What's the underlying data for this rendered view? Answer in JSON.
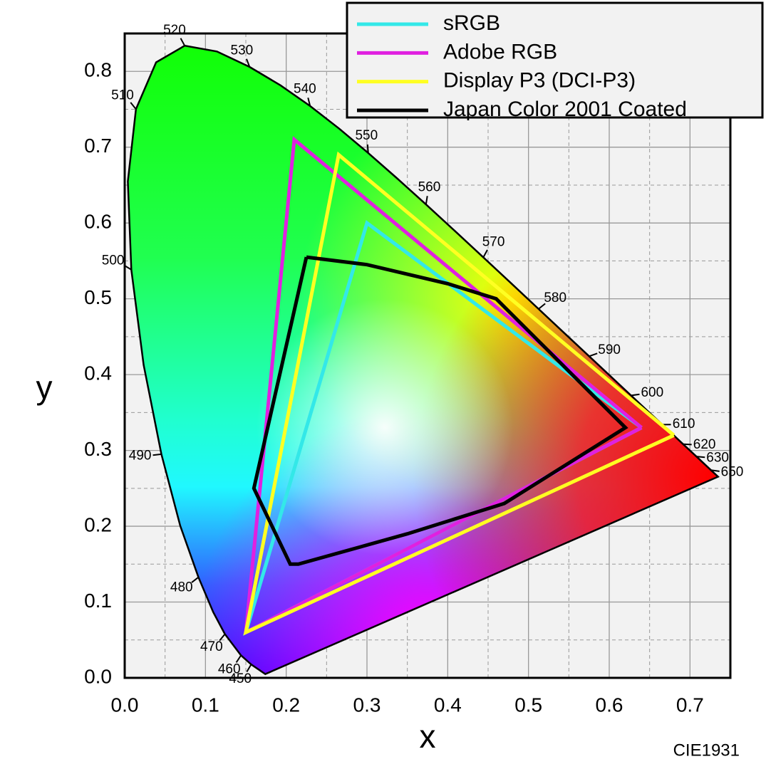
{
  "chart_data": {
    "type": "line",
    "xlabel": "x",
    "ylabel": "y",
    "footnote": "CIE1931",
    "xlim": [
      0,
      0.75
    ],
    "ylim": [
      0,
      0.85
    ],
    "xticks": [
      {
        "value": 0,
        "label": "0.0"
      },
      0.1,
      0.2,
      0.3,
      0.4,
      0.5,
      0.6,
      0.7
    ],
    "yticks": [
      {
        "value": 0,
        "label": "0.0"
      },
      0.1,
      0.2,
      0.3,
      0.4,
      0.5,
      0.6,
      0.7,
      0.8
    ],
    "xminor": [
      0.05,
      0.15,
      0.25,
      0.35,
      0.45,
      0.55,
      0.65
    ],
    "yminor": [
      0.05,
      0.15,
      0.25,
      0.35,
      0.45,
      0.55,
      0.65,
      0.75
    ],
    "grid": true,
    "minor_grid": true,
    "legend": "upper right",
    "locus": {
      "x": [
        0.1741,
        0.1566,
        0.144,
        0.1241,
        0.1096,
        0.0913,
        0.0687,
        0.0454,
        0.0235,
        0.0082,
        0.0039,
        0.0139,
        0.0389,
        0.0743,
        0.1142,
        0.1547,
        0.1929,
        0.2296,
        0.2658,
        0.3016,
        0.3373,
        0.3731,
        0.4087,
        0.4441,
        0.4788,
        0.5125,
        0.5448,
        0.5752,
        0.6029,
        0.627,
        0.6482,
        0.6658,
        0.6915,
        0.7079,
        0.726,
        0.7347
      ],
      "y": [
        0.005,
        0.0177,
        0.0297,
        0.0578,
        0.0868,
        0.1327,
        0.2007,
        0.295,
        0.4127,
        0.5384,
        0.6548,
        0.7502,
        0.812,
        0.8338,
        0.8262,
        0.8059,
        0.7816,
        0.7543,
        0.7243,
        0.6923,
        0.6589,
        0.6245,
        0.5896,
        0.5547,
        0.5202,
        0.4866,
        0.4544,
        0.4242,
        0.3965,
        0.3725,
        0.3514,
        0.334,
        0.3083,
        0.292,
        0.274,
        0.2653
      ],
      "wavelengths": [
        null,
        450,
        460,
        470,
        null,
        480,
        null,
        490,
        null,
        500,
        null,
        510,
        null,
        520,
        null,
        530,
        null,
        540,
        null,
        550,
        null,
        560,
        null,
        570,
        null,
        580,
        null,
        590,
        null,
        600,
        null,
        610,
        620,
        630,
        650,
        null
      ]
    },
    "series": [
      {
        "name": "sRGB",
        "color": "#33e8e8",
        "x": [
          0.64,
          0.3,
          0.15,
          0.64
        ],
        "y": [
          0.33,
          0.6,
          0.06,
          0.33
        ]
      },
      {
        "name": "Adobe RGB",
        "color": "#e020e0",
        "x": [
          0.64,
          0.21,
          0.15,
          0.64
        ],
        "y": [
          0.33,
          0.71,
          0.06,
          0.33
        ]
      },
      {
        "name": "Display P3 (DCI-P3)",
        "color": "#ffff22",
        "x": [
          0.68,
          0.265,
          0.15,
          0.68
        ],
        "y": [
          0.32,
          0.69,
          0.06,
          0.32
        ]
      },
      {
        "name": "Japan Color 2001 Coated",
        "color": "#000000",
        "x": [
          0.225,
          0.3,
          0.4,
          0.46,
          0.62,
          0.47,
          0.35,
          0.215,
          0.205,
          0.16,
          0.225
        ],
        "y": [
          0.555,
          0.545,
          0.52,
          0.5,
          0.33,
          0.23,
          0.19,
          0.15,
          0.15,
          0.25,
          0.555
        ]
      }
    ]
  }
}
